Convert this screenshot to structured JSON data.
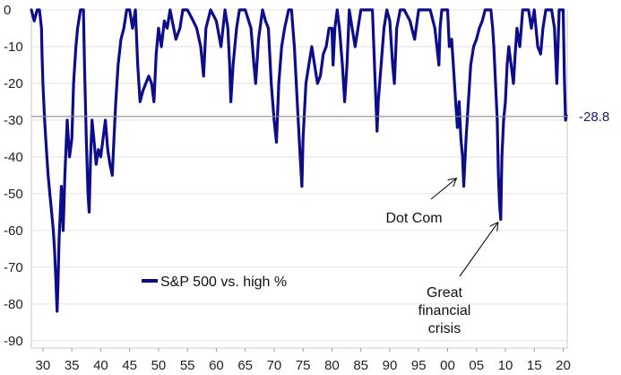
{
  "chart_data": {
    "type": "line",
    "title": "",
    "xlabel": "",
    "ylabel": "",
    "ylim": [
      -92,
      0
    ],
    "xlim": [
      1928,
      2020.7
    ],
    "y_ticks": [
      0,
      -10,
      -20,
      -30,
      -40,
      -50,
      -60,
      -70,
      -80,
      -90
    ],
    "y_tick_labels": [
      "0",
      "-10",
      "-20",
      "-30",
      "-40",
      "-50",
      "-60",
      "-70",
      "-80",
      "-90"
    ],
    "x_ticks": [
      1930,
      1935,
      1940,
      1945,
      1950,
      1955,
      1960,
      1965,
      1970,
      1975,
      1980,
      1985,
      1990,
      1995,
      2000,
      2005,
      2010,
      2015,
      2020
    ],
    "x_tick_labels": [
      "30",
      "35",
      "40",
      "45",
      "50",
      "55",
      "60",
      "65",
      "70",
      "75",
      "80",
      "85",
      "90",
      "95",
      "00",
      "05",
      "10",
      "15",
      "20"
    ],
    "grid": true,
    "series": [
      {
        "name": "S&P 500 vs. high %",
        "color": "#0d0d8c",
        "x": [
          1928.0,
          1928.5,
          1929.0,
          1929.4,
          1929.75,
          1929.85,
          1930.0,
          1930.3,
          1930.6,
          1930.9,
          1931.2,
          1931.5,
          1931.8,
          1932.0,
          1932.2,
          1932.45,
          1932.6,
          1932.8,
          1933.0,
          1933.2,
          1933.5,
          1933.8,
          1934.2,
          1934.6,
          1935.0,
          1935.3,
          1935.7,
          1936.0,
          1936.5,
          1937.0,
          1937.2,
          1937.5,
          1937.8,
          1938.0,
          1938.25,
          1938.5,
          1938.8,
          1939.2,
          1939.6,
          1940.0,
          1940.4,
          1940.8,
          1941.2,
          1941.6,
          1942.0,
          1942.3,
          1942.6,
          1943.0,
          1943.5,
          1944.0,
          1944.5,
          1945.0,
          1945.5,
          1946.0,
          1946.4,
          1946.8,
          1947.3,
          1947.8,
          1948.3,
          1948.8,
          1949.2,
          1949.6,
          1950.0,
          1950.5,
          1951.0,
          1951.5,
          1952.0,
          1953.0,
          1953.7,
          1954.2,
          1955.0,
          1956.0,
          1956.6,
          1957.3,
          1957.8,
          1958.2,
          1959.0,
          1960.0,
          1960.8,
          1961.5,
          1962.0,
          1962.3,
          1962.5,
          1962.9,
          1963.5,
          1964.0,
          1965.0,
          1966.0,
          1966.5,
          1966.8,
          1967.3,
          1968.0,
          1968.5,
          1969.0,
          1969.5,
          1970.0,
          1970.4,
          1970.8,
          1971.3,
          1971.8,
          1972.5,
          1973.0,
          1973.5,
          1974.0,
          1974.5,
          1974.8,
          1975.0,
          1975.5,
          1976.0,
          1976.5,
          1977.0,
          1977.5,
          1978.0,
          1978.5,
          1979.0,
          1979.5,
          1980.0,
          1980.2,
          1980.5,
          1980.9,
          1981.3,
          1981.8,
          1982.2,
          1982.6,
          1983.0,
          1983.5,
          1984.0,
          1984.5,
          1985.0,
          1986.0,
          1987.0,
          1987.6,
          1987.8,
          1988.0,
          1988.5,
          1989.0,
          1989.5,
          1990.0,
          1990.5,
          1990.8,
          1991.2,
          1991.8,
          1992.5,
          1993.5,
          1994.3,
          1995.0,
          1996.0,
          1997.0,
          1997.8,
          1998.5,
          1998.7,
          1999.0,
          1999.5,
          2000.0,
          2000.3,
          2000.7,
          2001.0,
          2001.4,
          2001.7,
          2002.0,
          2002.3,
          2002.6,
          2002.8,
          2003.2,
          2003.6,
          2004.0,
          2004.5,
          2005.0,
          2005.5,
          2006.0,
          2006.5,
          2007.0,
          2007.5,
          2007.8,
          2008.0,
          2008.3,
          2008.6,
          2008.8,
          2009.0,
          2009.2,
          2009.4,
          2009.7,
          2010.0,
          2010.3,
          2010.6,
          2011.0,
          2011.4,
          2011.7,
          2012.0,
          2012.5,
          2013.0,
          2014.0,
          2014.5,
          2015.0,
          2015.6,
          2016.1,
          2016.5,
          2017.0,
          2018.0,
          2018.5,
          2018.9,
          2019.3,
          2019.8,
          2020.0,
          2020.2,
          2020.4,
          2020.55
        ],
        "values": [
          0,
          -3,
          0,
          0,
          -5,
          -12,
          -20,
          -30,
          -38,
          -45,
          -50,
          -55,
          -60,
          -65,
          -72,
          -82,
          -75,
          -62,
          -55,
          -48,
          -60,
          -45,
          -30,
          -40,
          -35,
          -20,
          -10,
          -5,
          0,
          0,
          -15,
          -35,
          -50,
          -55,
          -40,
          -30,
          -35,
          -42,
          -38,
          -40,
          -35,
          -30,
          -38,
          -42,
          -45,
          -35,
          -25,
          -15,
          -8,
          -5,
          0,
          0,
          -5,
          0,
          -15,
          -25,
          -22,
          -20,
          -18,
          -20,
          -25,
          -12,
          -5,
          -10,
          -3,
          -5,
          0,
          -8,
          -5,
          0,
          0,
          -3,
          -5,
          -10,
          -18,
          -5,
          0,
          -3,
          -10,
          0,
          -5,
          -15,
          -25,
          -15,
          -5,
          0,
          0,
          -5,
          -15,
          -20,
          -8,
          0,
          -3,
          -5,
          -20,
          -30,
          -36,
          -20,
          -10,
          -5,
          0,
          0,
          -10,
          -25,
          -40,
          -48,
          -35,
          -20,
          -15,
          -10,
          -15,
          -20,
          -18,
          -12,
          -10,
          -5,
          -5,
          -15,
          -5,
          0,
          -5,
          -15,
          -25,
          -15,
          0,
          -5,
          -10,
          -5,
          0,
          0,
          0,
          -25,
          -33,
          -25,
          -15,
          -5,
          0,
          -3,
          -15,
          -20,
          -5,
          0,
          0,
          -3,
          -8,
          0,
          0,
          0,
          -5,
          -15,
          -5,
          0,
          0,
          0,
          -10,
          -8,
          -15,
          -25,
          -32,
          -25,
          -35,
          -40,
          -48,
          -35,
          -25,
          -15,
          -10,
          -8,
          -5,
          -3,
          0,
          0,
          0,
          -5,
          -10,
          -20,
          -30,
          -45,
          -53,
          -57,
          -40,
          -30,
          -25,
          -15,
          -10,
          -15,
          -20,
          -12,
          -5,
          -10,
          0,
          0,
          -5,
          0,
          -10,
          -12,
          -5,
          0,
          0,
          -5,
          -20,
          0,
          0,
          0,
          -18,
          -30,
          -28.8
        ]
      }
    ],
    "legend": {
      "label": "S&P 500 vs. high %",
      "position": "lower-left"
    },
    "reference_line": {
      "value": -29,
      "label": "-28.8"
    },
    "annotations": [
      {
        "text": "Dot Com",
        "lines": [
          "Dot Com"
        ],
        "target_x": 2000.8,
        "target_y": -45
      },
      {
        "text": "Great financial crisis",
        "lines": [
          "Great",
          "financial",
          "crisis"
        ],
        "target_x": 2008.8,
        "target_y": -57
      }
    ]
  }
}
